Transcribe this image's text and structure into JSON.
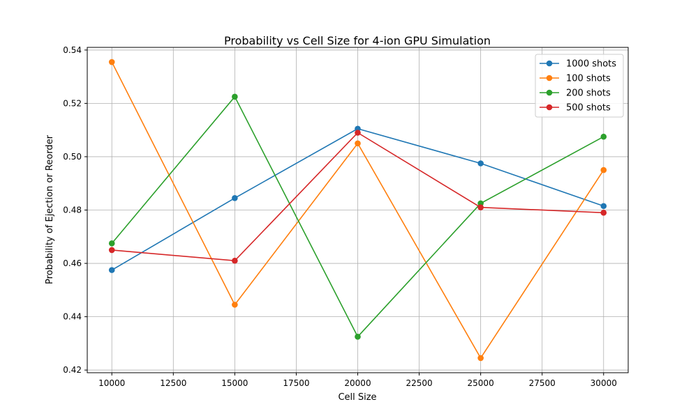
{
  "chart_data": {
    "type": "line",
    "title": "Probability vs Cell Size for 4-ion GPU Simulation",
    "xlabel": "Cell Size",
    "ylabel": "Probability of Ejection or Reorder",
    "x": [
      10000,
      15000,
      20000,
      25000,
      30000
    ],
    "xlim": [
      9000,
      31000
    ],
    "ylim": [
      0.419,
      0.541
    ],
    "xticks": [
      10000,
      12500,
      15000,
      17500,
      20000,
      22500,
      25000,
      27500,
      30000
    ],
    "yticks": [
      0.42,
      0.44,
      0.46,
      0.48,
      0.5,
      0.52,
      0.54
    ],
    "grid": true,
    "legend": "top-right",
    "series": [
      {
        "name": "1000 shots",
        "color": "#1f77b4",
        "values": [
          0.4575,
          0.4845,
          0.5105,
          0.4975,
          0.4815
        ]
      },
      {
        "name": "100 shots",
        "color": "#ff7f0e",
        "values": [
          0.5355,
          0.4445,
          0.505,
          0.4245,
          0.495
        ]
      },
      {
        "name": "200 shots",
        "color": "#2ca02c",
        "values": [
          0.4675,
          0.5225,
          0.4325,
          0.4825,
          0.5075
        ]
      },
      {
        "name": "500 shots",
        "color": "#d62728",
        "values": [
          0.465,
          0.461,
          0.509,
          0.481,
          0.479
        ]
      }
    ]
  }
}
